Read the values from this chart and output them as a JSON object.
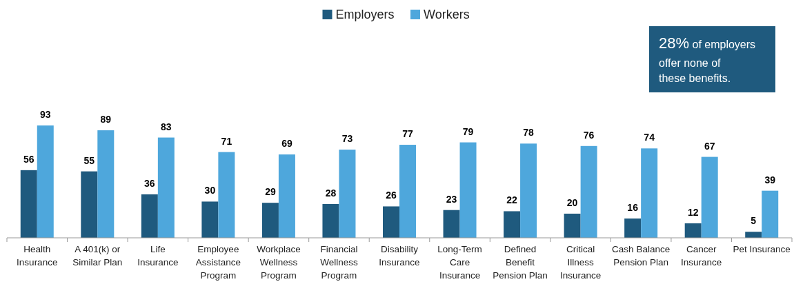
{
  "chart_data": {
    "type": "bar",
    "categories": [
      "Health Insurance",
      "A 401(k) or Similar Plan",
      "Life Insurance",
      "Employee Assistance Program",
      "Workplace Wellness Program",
      "Financial Wellness Program",
      "Disability Insurance",
      "Long-Term Care Insurance",
      "Defined Benefit Pension Plan",
      "Critical Illness Insurance",
      "Cash Balance Pension Plan",
      "Cancer Insurance",
      "Pet Insurance"
    ],
    "series": [
      {
        "name": "Employers",
        "color": "#1f5a7e",
        "values": [
          56,
          55,
          36,
          30,
          29,
          28,
          26,
          23,
          22,
          20,
          16,
          12,
          5
        ]
      },
      {
        "name": "Workers",
        "color": "#4ea7dc",
        "values": [
          93,
          89,
          83,
          71,
          69,
          73,
          77,
          79,
          78,
          76,
          74,
          67,
          39
        ]
      }
    ],
    "data_labels": true,
    "legend": "top",
    "annotations": [
      "28% of employers offer none of these benefits."
    ]
  }
}
